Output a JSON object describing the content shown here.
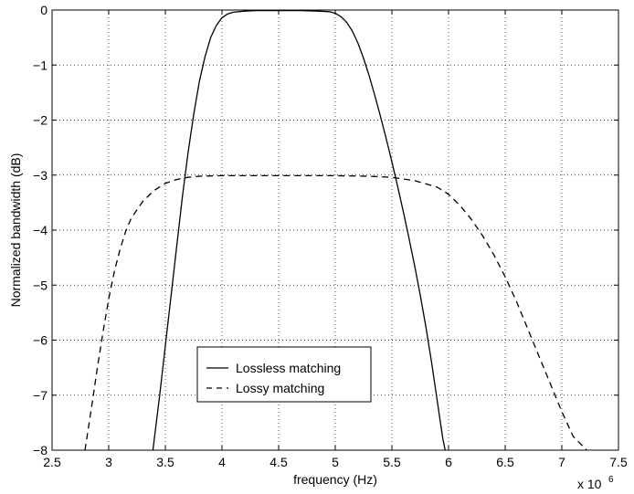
{
  "chart_data": {
    "type": "line",
    "title": "",
    "xlabel": "frequency (Hz)",
    "ylabel": "Normalized bandwidth (dB)",
    "x_multiplier_text": "x 10",
    "x_multiplier_exp": "6",
    "xlim": [
      2.5,
      7.5
    ],
    "ylim": [
      -8,
      0
    ],
    "x_ticks": [
      2.5,
      3,
      3.5,
      4,
      4.5,
      5,
      5.5,
      6,
      6.5,
      7,
      7.5
    ],
    "x_tick_labels": [
      "2.5",
      "3",
      "3.5",
      "4",
      "4.5",
      "5",
      "5.5",
      "6",
      "6.5",
      "7",
      "7.5"
    ],
    "y_ticks": [
      0,
      -1,
      -2,
      -3,
      -4,
      -5,
      -6,
      -7,
      -8
    ],
    "y_tick_labels": [
      "0",
      "−1",
      "−2",
      "−3",
      "−4",
      "−5",
      "−6",
      "−7",
      "−8"
    ],
    "grid": true,
    "legend_position": "bottom-center",
    "series": [
      {
        "name": "Lossless matching",
        "style": "solid",
        "color": "#000000",
        "points": [
          [
            3.39,
            -8.0
          ],
          [
            3.45,
            -7.0
          ],
          [
            3.5,
            -6.1
          ],
          [
            3.55,
            -5.2
          ],
          [
            3.6,
            -4.3
          ],
          [
            3.65,
            -3.4
          ],
          [
            3.7,
            -2.6
          ],
          [
            3.75,
            -1.9
          ],
          [
            3.8,
            -1.3
          ],
          [
            3.85,
            -0.85
          ],
          [
            3.9,
            -0.5
          ],
          [
            3.95,
            -0.28
          ],
          [
            4.0,
            -0.14
          ],
          [
            4.05,
            -0.07
          ],
          [
            4.1,
            -0.04
          ],
          [
            4.2,
            -0.02
          ],
          [
            4.3,
            -0.01
          ],
          [
            4.5,
            -0.01
          ],
          [
            4.7,
            -0.01
          ],
          [
            4.85,
            -0.02
          ],
          [
            4.95,
            -0.03
          ],
          [
            5.0,
            -0.06
          ],
          [
            5.05,
            -0.12
          ],
          [
            5.1,
            -0.22
          ],
          [
            5.15,
            -0.38
          ],
          [
            5.2,
            -0.6
          ],
          [
            5.25,
            -0.88
          ],
          [
            5.3,
            -1.2
          ],
          [
            5.35,
            -1.56
          ],
          [
            5.4,
            -1.94
          ],
          [
            5.45,
            -2.34
          ],
          [
            5.5,
            -2.76
          ],
          [
            5.55,
            -3.2
          ],
          [
            5.6,
            -3.66
          ],
          [
            5.65,
            -4.14
          ],
          [
            5.7,
            -4.64
          ],
          [
            5.75,
            -5.18
          ],
          [
            5.8,
            -5.76
          ],
          [
            5.85,
            -6.4
          ],
          [
            5.9,
            -7.1
          ],
          [
            5.95,
            -7.8
          ],
          [
            5.97,
            -8.0
          ]
        ]
      },
      {
        "name": "Lossy matching",
        "style": "dashed",
        "color": "#000000",
        "points": [
          [
            2.79,
            -8.0
          ],
          [
            2.85,
            -7.2
          ],
          [
            2.9,
            -6.5
          ],
          [
            2.95,
            -5.85
          ],
          [
            3.0,
            -5.25
          ],
          [
            3.05,
            -4.75
          ],
          [
            3.1,
            -4.35
          ],
          [
            3.15,
            -4.02
          ],
          [
            3.2,
            -3.78
          ],
          [
            3.3,
            -3.48
          ],
          [
            3.4,
            -3.28
          ],
          [
            3.5,
            -3.15
          ],
          [
            3.6,
            -3.08
          ],
          [
            3.7,
            -3.04
          ],
          [
            3.8,
            -3.02
          ],
          [
            4.0,
            -3.01
          ],
          [
            4.5,
            -3.01
          ],
          [
            5.0,
            -3.01
          ],
          [
            5.3,
            -3.02
          ],
          [
            5.5,
            -3.04
          ],
          [
            5.7,
            -3.1
          ],
          [
            5.9,
            -3.22
          ],
          [
            6.0,
            -3.35
          ],
          [
            6.1,
            -3.55
          ],
          [
            6.2,
            -3.8
          ],
          [
            6.3,
            -4.1
          ],
          [
            6.4,
            -4.45
          ],
          [
            6.5,
            -4.85
          ],
          [
            6.6,
            -5.3
          ],
          [
            6.7,
            -5.8
          ],
          [
            6.8,
            -6.3
          ],
          [
            6.9,
            -6.8
          ],
          [
            7.0,
            -7.3
          ],
          [
            7.1,
            -7.75
          ],
          [
            7.22,
            -8.0
          ]
        ]
      }
    ]
  }
}
